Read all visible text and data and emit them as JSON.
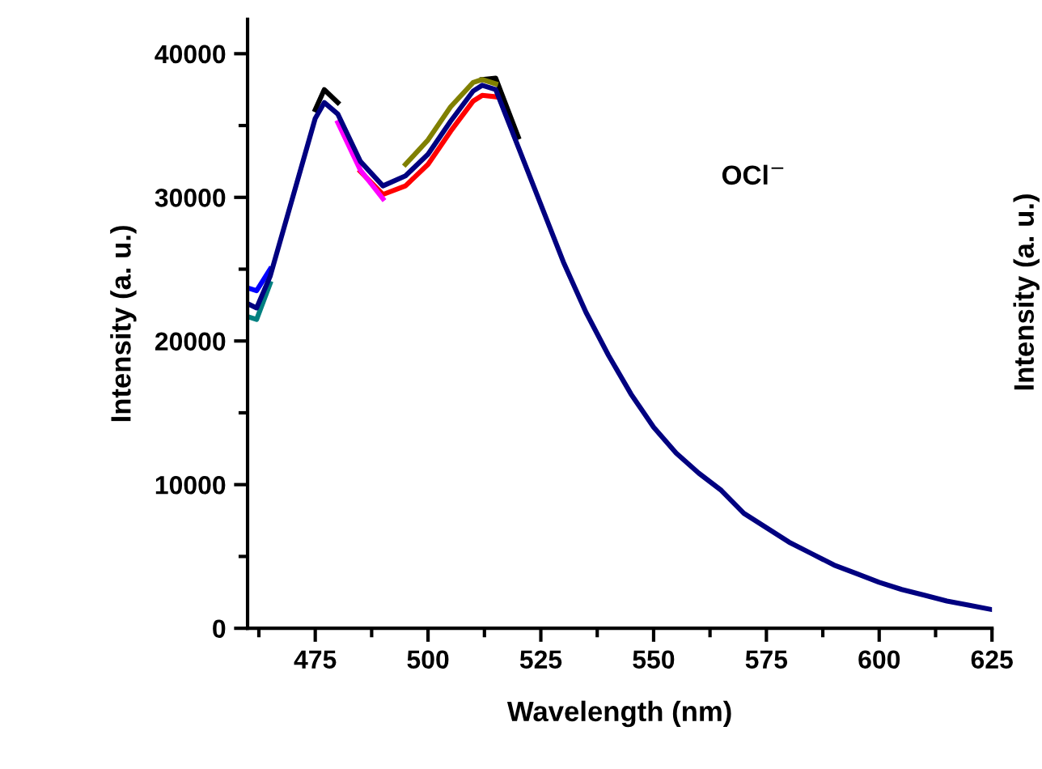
{
  "chart_data": {
    "type": "line",
    "xlabel": "Wavelength (nm)",
    "ylabel": "Intensity (a. u.)",
    "annotations": [
      "OCl$^{−}$",
      "Intensity (a. u.)"
    ],
    "x": [
      460,
      462,
      465,
      470,
      475,
      477,
      480,
      485,
      490,
      495,
      500,
      505,
      510,
      512,
      515,
      520,
      525,
      530,
      535,
      540,
      545,
      550,
      555,
      560,
      565,
      570,
      575,
      580,
      585,
      590,
      595,
      600,
      605,
      610,
      615,
      620,
      625
    ],
    "series": [
      {
        "color": "#000000",
        "values": [
          null,
          null,
          null,
          null,
          36100,
          37500,
          36600,
          null,
          null,
          null,
          null,
          null,
          null,
          38200,
          38300,
          34200,
          null,
          null,
          null,
          null,
          null,
          null,
          null,
          null,
          null,
          null,
          null,
          null,
          null,
          null,
          null,
          null,
          null,
          null,
          null,
          null,
          null
        ]
      },
      {
        "color": "#ff0000",
        "values": [
          null,
          null,
          null,
          null,
          null,
          null,
          null,
          31800,
          30200,
          30800,
          32300,
          34600,
          36700,
          37100,
          37000,
          null,
          null,
          null,
          null,
          null,
          null,
          null,
          null,
          null,
          null,
          null,
          null,
          null,
          null,
          null,
          null,
          null,
          null,
          null,
          null,
          null,
          null
        ]
      },
      {
        "color": "#ff00ff",
        "values": [
          null,
          null,
          null,
          null,
          null,
          null,
          35200,
          31900,
          29900,
          null,
          null,
          null,
          null,
          null,
          null,
          null,
          null,
          null,
          null,
          null,
          null,
          null,
          null,
          null,
          null,
          null,
          null,
          null,
          null,
          null,
          null,
          null,
          null,
          null,
          null,
          null,
          null
        ]
      },
      {
        "color": "#808000",
        "values": [
          null,
          null,
          null,
          null,
          null,
          null,
          null,
          null,
          null,
          32300,
          34000,
          36300,
          38000,
          38200,
          37900,
          null,
          null,
          null,
          null,
          null,
          null,
          null,
          null,
          null,
          null,
          null,
          null,
          null,
          null,
          null,
          null,
          null,
          null,
          null,
          null,
          null,
          null
        ]
      },
      {
        "color": "#008080",
        "values": [
          21700,
          21500,
          24000,
          null,
          null,
          null,
          null,
          null,
          null,
          null,
          null,
          null,
          null,
          null,
          null,
          null,
          null,
          null,
          null,
          null,
          null,
          null,
          null,
          null,
          null,
          null,
          null,
          null,
          null,
          null,
          null,
          null,
          null,
          null,
          null,
          null,
          null
        ]
      },
      {
        "color": "#0000ff",
        "values": [
          23700,
          23500,
          25000,
          null,
          null,
          null,
          null,
          null,
          null,
          null,
          null,
          null,
          null,
          null,
          null,
          null,
          null,
          null,
          null,
          null,
          null,
          null,
          null,
          null,
          null,
          null,
          null,
          null,
          null,
          null,
          null,
          null,
          null,
          null,
          null,
          null,
          null
        ]
      },
      {
        "color": "#000080",
        "values": [
          22600,
          22300,
          24500,
          30000,
          35500,
          36600,
          35800,
          32500,
          30800,
          31500,
          33000,
          35300,
          37400,
          37800,
          37500,
          33500,
          29500,
          25500,
          22000,
          19000,
          16300,
          14000,
          12200,
          10800,
          9600,
          8000,
          7000,
          6000,
          5200,
          4400,
          3800,
          3200,
          2700,
          2300,
          1900,
          1600,
          1300
        ]
      }
    ],
    "xlim": [
      460,
      625
    ],
    "ylim": [
      0,
      42400
    ],
    "xticks": [
      {
        "value": 462.5,
        "label": null
      },
      475,
      {
        "value": 487.5,
        "label": null
      },
      500,
      {
        "value": 512.5,
        "label": null
      },
      525,
      {
        "value": 537.5,
        "label": null
      },
      550,
      {
        "value": 562.5,
        "label": null
      },
      575,
      {
        "value": 587.5,
        "label": null
      },
      600,
      {
        "value": 612.5,
        "label": null
      },
      625
    ],
    "yticks": [
      0,
      {
        "value": 5000,
        "label": null
      },
      10000,
      {
        "value": 15000,
        "label": null
      },
      20000,
      {
        "value": 25000,
        "label": null
      },
      30000,
      {
        "value": 35000,
        "label": null
      },
      40000
    ],
    "grid": false,
    "legend": false,
    "marker": "none",
    "line_style": "solid"
  }
}
